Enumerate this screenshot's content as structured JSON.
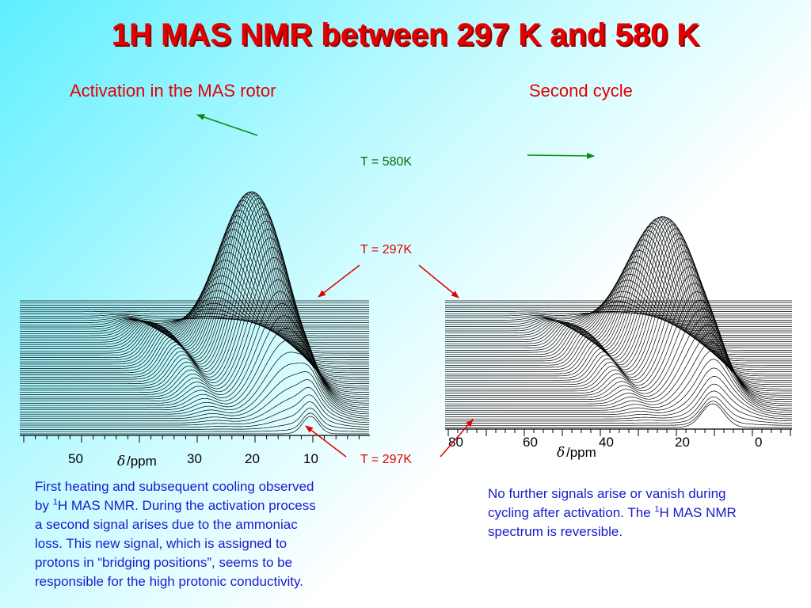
{
  "title": "1H MAS NMR between 297 K and 580 K",
  "left_panel": {
    "subtitle": "Activation in the MAS rotor",
    "axis_ticks": [
      "50",
      "30",
      "20",
      "10"
    ],
    "axis_unit": "/ppm",
    "caption_line1_pre": "First heating and subsequent cooling observed",
    "caption_by": "by ",
    "caption_sup": "1",
    "caption_line2_post": "H MAS NMR. During the activation process",
    "caption_line3": "a second signal arises due to the ammoniac",
    "caption_line4": "loss. This new signal, which is assigned to",
    "caption_line5": "protons in “bridging positions”, seems to be",
    "caption_line6": "responsible for the high protonic conductivity."
  },
  "right_panel": {
    "subtitle": "Second cycle",
    "axis_ticks": [
      "80",
      "60",
      "40",
      "20",
      "0"
    ],
    "axis_unit": "/ppm",
    "caption_line1": "No further signals arise or vanish during",
    "caption_line2_pre": "cycling after activation. The ",
    "caption_sup": "1",
    "caption_line2_post": "H MAS NMR",
    "caption_line3": "spectrum is reversible."
  },
  "temperature_labels": {
    "t_high": "T = 580K",
    "t_low_top": "T = 297K",
    "t_low_bottom": "T = 297K"
  },
  "colors": {
    "title": "#e30000",
    "subtitle": "#e30000",
    "caption": "#1a1acc",
    "arrow_green": "#0a8a0a",
    "arrow_red": "#e30000",
    "spectrum": "#000000"
  }
}
